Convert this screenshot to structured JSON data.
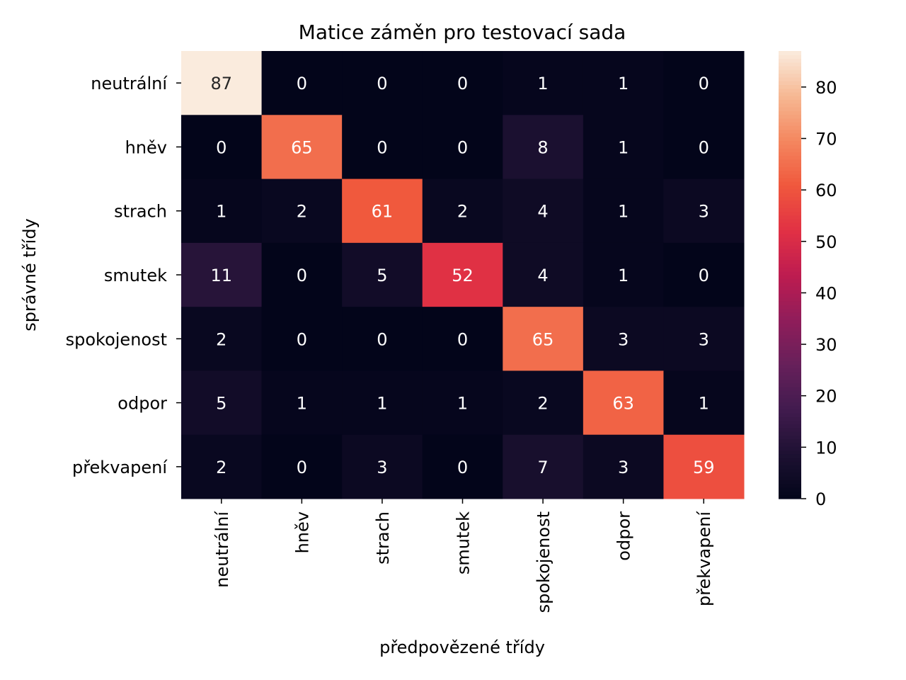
{
  "chart_data": {
    "type": "heatmap",
    "title": "Matice záměn pro testovací sada",
    "xlabel": "předpovězené třídy",
    "ylabel": "správné třídy",
    "x_categories": [
      "neutrální",
      "hněv",
      "strach",
      "smutek",
      "spokojenost",
      "odpor",
      "překvapení"
    ],
    "y_categories": [
      "neutrální",
      "hněv",
      "strach",
      "smutek",
      "spokojenost",
      "odpor",
      "překvapení"
    ],
    "values": [
      [
        87,
        0,
        0,
        0,
        1,
        1,
        0
      ],
      [
        0,
        65,
        0,
        0,
        8,
        1,
        0
      ],
      [
        1,
        2,
        61,
        2,
        4,
        1,
        3
      ],
      [
        11,
        0,
        5,
        52,
        4,
        1,
        0
      ],
      [
        2,
        0,
        0,
        0,
        65,
        3,
        3
      ],
      [
        5,
        1,
        1,
        1,
        2,
        63,
        1
      ],
      [
        2,
        0,
        3,
        0,
        7,
        3,
        59
      ]
    ],
    "colorbar": {
      "min": 0,
      "max": 87,
      "ticks": [
        0,
        10,
        20,
        30,
        40,
        50,
        60,
        70,
        80
      ],
      "colormap": "rocket"
    }
  }
}
